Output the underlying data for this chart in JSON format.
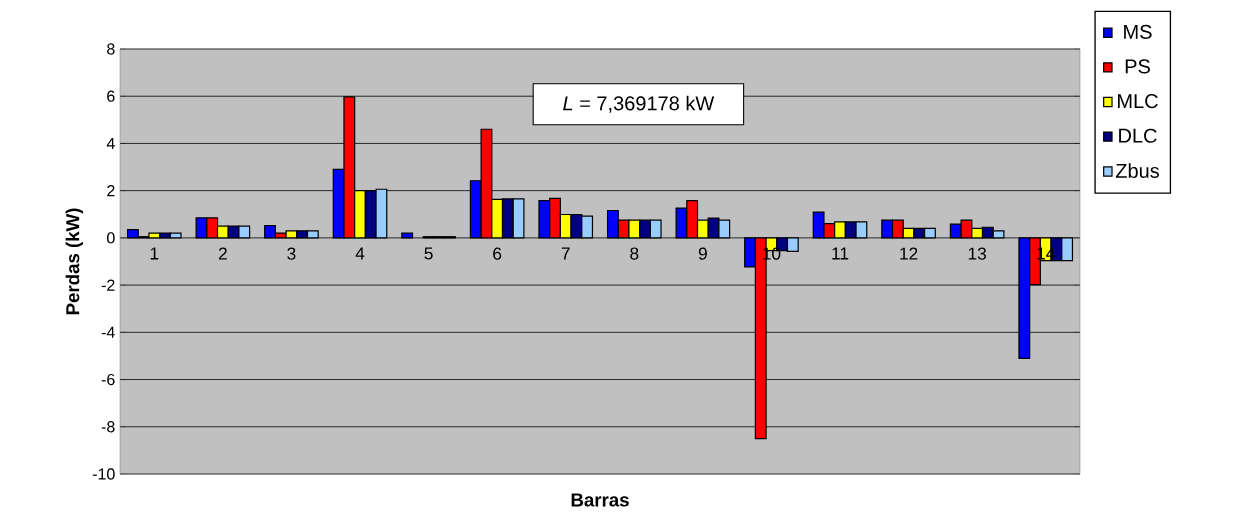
{
  "chart_data": {
    "type": "bar",
    "xlabel": "Barras",
    "ylabel": "Perdas (kW)",
    "categories": [
      "1",
      "2",
      "3",
      "4",
      "5",
      "6",
      "7",
      "8",
      "9",
      "10",
      "11",
      "12",
      "13",
      "14"
    ],
    "series": [
      {
        "name": "MS",
        "color": "#0000ff",
        "values": [
          0.35,
          0.85,
          0.52,
          2.9,
          0.2,
          2.42,
          1.58,
          1.16,
          1.26,
          -1.23,
          1.09,
          0.75,
          0.58,
          -5.1
        ]
      },
      {
        "name": "PS",
        "color": "#ff0000",
        "values": [
          0.05,
          0.85,
          0.2,
          5.97,
          null,
          4.6,
          1.67,
          0.75,
          1.58,
          -8.5,
          0.6,
          0.75,
          0.75,
          -1.98
        ]
      },
      {
        "name": "MLC",
        "color": "#ffff00",
        "values": [
          0.2,
          0.5,
          0.3,
          2.0,
          0.05,
          1.63,
          0.99,
          0.75,
          0.75,
          -0.54,
          0.68,
          0.4,
          0.4,
          -0.96
        ]
      },
      {
        "name": "DLC",
        "color": "#000080",
        "values": [
          0.2,
          0.5,
          0.3,
          2.0,
          0.05,
          1.65,
          0.99,
          0.75,
          0.84,
          -0.54,
          0.68,
          0.4,
          0.45,
          -0.96
        ]
      },
      {
        "name": "Zbus",
        "color": "#99ccff",
        "values": [
          0.2,
          0.5,
          0.3,
          2.06,
          0.05,
          1.65,
          0.92,
          0.75,
          0.75,
          -0.57,
          0.68,
          0.4,
          0.3,
          -0.96
        ]
      }
    ],
    "ylim": [
      -10,
      8
    ],
    "yticks": [
      -10,
      -8,
      -6,
      -4,
      -2,
      0,
      2,
      4,
      6,
      8
    ],
    "grid": "y",
    "legend": "right",
    "annotations": [
      "*L* = 7,369178 kW"
    ]
  }
}
